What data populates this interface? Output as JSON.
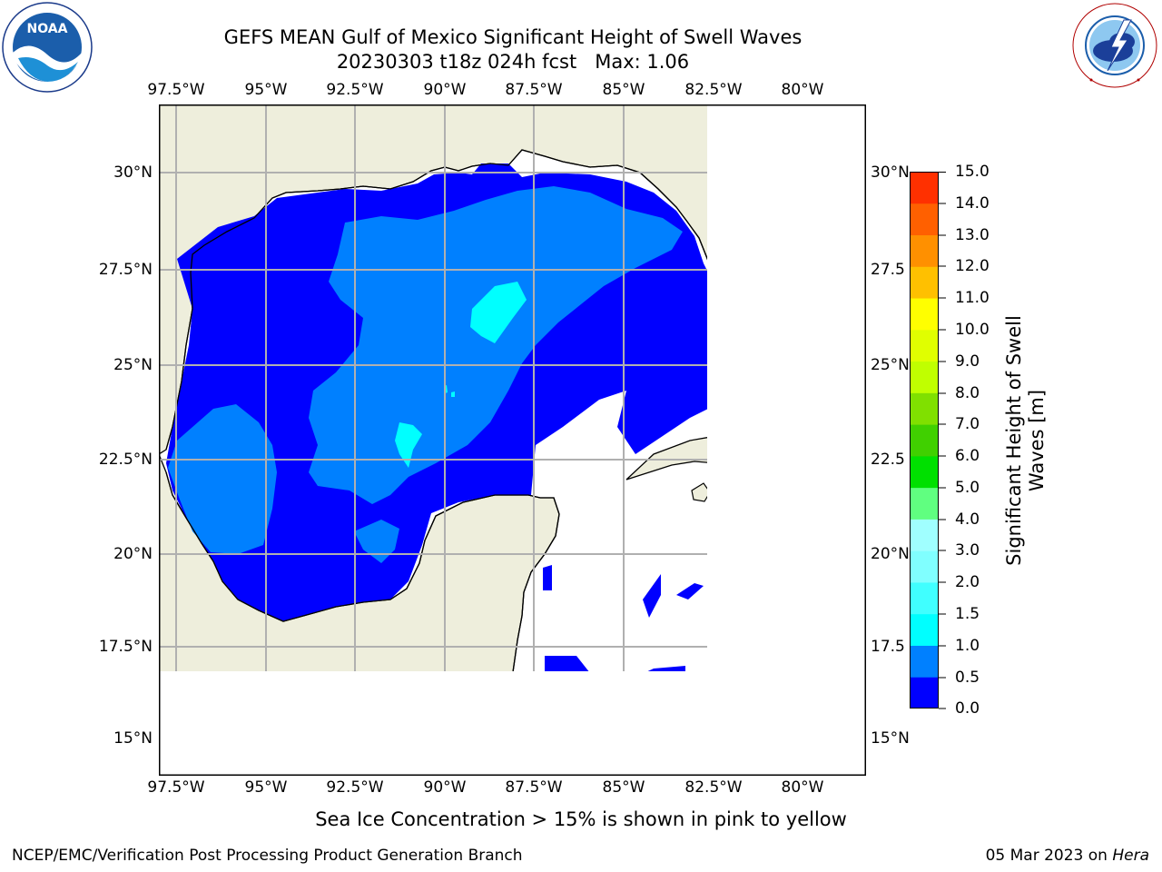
{
  "header": {
    "title_line1": "GEFS MEAN Gulf of Mexico Significant Height of Swell Waves",
    "title_line2": "20230303 t18z 024h fcst   Max: 1.06"
  },
  "logos": {
    "left": {
      "text": "NOAA",
      "ring_text": "NATIONAL OCEANIC AND ATMOSPHERIC ADMINISTRATION · U.S. DEPARTMENT OF COMMERCE",
      "icon": "noaa-logo"
    },
    "right": {
      "ring_text": "NATIONAL WEATHER SERVICE",
      "icon": "nws-logo"
    }
  },
  "map": {
    "lon_ticks": [
      "97.5°W",
      "95°W",
      "92.5°W",
      "90°W",
      "87.5°W",
      "85°W",
      "82.5°W",
      "80°W"
    ],
    "lat_ticks": [
      "30°N",
      "27.5°N",
      "25°N",
      "22.5°N",
      "20°N",
      "17.5°N",
      "15°N"
    ],
    "right_lat_ticks": [
      "30°N",
      "27.5",
      "25°N",
      "22.5",
      "20°N",
      "17.5",
      "15°N"
    ],
    "colors": {
      "land": "#eeeedc",
      "ocean_background": "#ffffff",
      "gridline": "#b0b0b0",
      "coastline": "#000000"
    }
  },
  "colorbar": {
    "label": "Significant Height of Swell Waves [m]",
    "ticks": [
      "15.0",
      "14.0",
      "13.0",
      "12.0",
      "11.0",
      "10.0",
      "9.0",
      "8.0",
      "7.0",
      "6.0",
      "5.0",
      "4.0",
      "3.0",
      "2.0",
      "1.5",
      "1.0",
      "0.5",
      "0.0"
    ],
    "levels": [
      0.0,
      0.5,
      1.0,
      1.5,
      2.0,
      3.0,
      4.0,
      5.0,
      6.0,
      7.0,
      8.0,
      9.0,
      10.0,
      11.0,
      12.0,
      13.0,
      14.0,
      15.0
    ],
    "colors": [
      "#0000ff",
      "#0080ff",
      "#00ffff",
      "#40ffff",
      "#80ffff",
      "#a0ffff",
      "#60ff80",
      "#00e000",
      "#40d000",
      "#80e000",
      "#c0ff00",
      "#e0ff00",
      "#ffff00",
      "#ffc000",
      "#ff9000",
      "#ff6000",
      "#ff3000",
      "#ff0000"
    ]
  },
  "notes": {
    "sea_ice": "Sea Ice Concentration > 15% is shown in pink to yellow"
  },
  "footer": {
    "left": "NCEP/EMC/Verification Post Processing Product Generation Branch",
    "date": "05 Mar 2023 on ",
    "machine": "Hera"
  }
}
